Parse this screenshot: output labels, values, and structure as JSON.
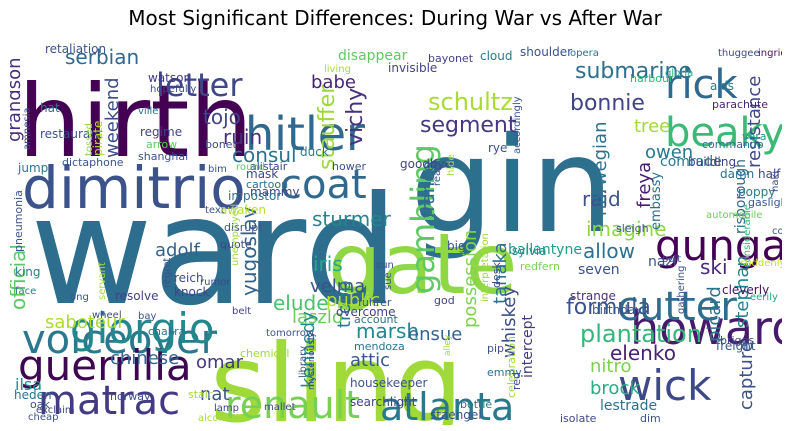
{
  "chart_data": {
    "type": "wordcloud",
    "title": "Most Significant Differences: During War vs After War",
    "words": [
      {
        "text": "ward",
        "color": "#2d6e8e"
      },
      {
        "text": "gin",
        "color": "#2d708e"
      },
      {
        "text": "hirth",
        "color": "#440154"
      },
      {
        "text": "sling",
        "color": "#a0da39"
      },
      {
        "text": "gate",
        "color": "#8fd744"
      },
      {
        "text": "dimitrio",
        "color": "#3b528b"
      },
      {
        "text": "hitler",
        "color": "#31688e"
      },
      {
        "text": "gunga",
        "color": "#440154"
      },
      {
        "text": "rick",
        "color": "#30688e"
      },
      {
        "text": "beaky",
        "color": "#3aba76"
      },
      {
        "text": "coat",
        "color": "#31688e"
      },
      {
        "text": "voiceover",
        "color": "#2a778e"
      },
      {
        "text": "guerrilla",
        "color": "#3e0751"
      },
      {
        "text": "howard",
        "color": "#481a6c"
      },
      {
        "text": "cutter",
        "color": "#2f6c8e"
      },
      {
        "text": "giorgio",
        "color": "#23888e"
      },
      {
        "text": "renault",
        "color": "#75d054"
      },
      {
        "text": "atlanta",
        "color": "#2a788e"
      },
      {
        "text": "wick",
        "color": "#3e4989"
      },
      {
        "text": "matrac",
        "color": "#443983"
      },
      {
        "text": "letter",
        "color": "#3f4788"
      },
      {
        "text": "gambling",
        "color": "#5ec962"
      },
      {
        "text": "submarine",
        "color": "#2e6f8e"
      },
      {
        "text": "bonnie",
        "color": "#404387"
      },
      {
        "text": "schultz",
        "color": "#a8db34"
      },
      {
        "text": "segment",
        "color": "#453781"
      },
      {
        "text": "plantation",
        "color": "#35b779"
      },
      {
        "text": "formula",
        "color": "#39558c"
      },
      {
        "text": "elenko",
        "color": "#482173"
      },
      {
        "text": "official",
        "color": "#5ac864"
      },
      {
        "text": "stauffer",
        "color": "#9dd93b"
      },
      {
        "text": "resistance",
        "color": "#3e4989"
      },
      {
        "text": "vichy",
        "color": "#46327e"
      },
      {
        "text": "ruin",
        "color": "#46307e"
      },
      {
        "text": "tojo",
        "color": "#404688"
      },
      {
        "text": "consul",
        "color": "#2c728e"
      },
      {
        "text": "grandson",
        "color": "#46307e"
      },
      {
        "text": "serbian",
        "color": "#31688e"
      },
      {
        "text": "weekend",
        "color": "#3d4d8a"
      },
      {
        "text": "babe",
        "color": "#482475"
      },
      {
        "text": "tree",
        "color": "#a0da39"
      },
      {
        "text": "owen",
        "color": "#2a788e"
      },
      {
        "text": "sturmer",
        "color": "#25858e"
      },
      {
        "text": "raid",
        "color": "#3b528b"
      },
      {
        "text": "norwegian",
        "color": "#2c728e"
      },
      {
        "text": "freya",
        "color": "#481d6f"
      },
      {
        "text": "france",
        "color": "#31688e"
      },
      {
        "text": "imagine",
        "color": "#90d743"
      },
      {
        "text": "allow",
        "color": "#2c728e"
      },
      {
        "text": "ski",
        "color": "#482878"
      },
      {
        "text": "adolf",
        "color": "#33638d"
      },
      {
        "text": "iris",
        "color": "#22a884"
      },
      {
        "text": "velma",
        "color": "#3b528b"
      },
      {
        "text": "elude",
        "color": "#4ac16d"
      },
      {
        "text": "yugoslav",
        "color": "#33638d"
      },
      {
        "text": "troop",
        "color": "#2a788e"
      },
      {
        "text": "laszlo",
        "color": "#6ccd5a"
      },
      {
        "text": "possession",
        "color": "#7fd34e"
      },
      {
        "text": "tanaka",
        "color": "#2c728e"
      },
      {
        "text": "stephan",
        "color": "#277f8e"
      },
      {
        "text": "picard",
        "color": "#2c728e"
      },
      {
        "text": "capture",
        "color": "#3b528b"
      },
      {
        "text": "kennedy",
        "color": "#23888e"
      },
      {
        "text": "marsh",
        "color": "#24868e"
      },
      {
        "text": "public",
        "color": "#b5de2b"
      },
      {
        "text": "ensue",
        "color": "#33638d"
      },
      {
        "text": "saboteur",
        "color": "#addc30"
      },
      {
        "text": "chinese",
        "color": "#31688e"
      },
      {
        "text": "omar",
        "color": "#443983"
      },
      {
        "text": "nat",
        "color": "#3b528b"
      },
      {
        "text": "attic",
        "color": "#38598c"
      },
      {
        "text": "whiskey",
        "color": "#3d4e8a"
      },
      {
        "text": "nitro",
        "color": "#7ad151"
      },
      {
        "text": "brock",
        "color": "#27ad81"
      },
      {
        "text": "lestrade",
        "color": "#2c728e"
      },
      {
        "text": "ilsa",
        "color": "#20928c"
      },
      {
        "text": "intercept",
        "color": "#443983"
      },
      {
        "text": "risborough",
        "color": "#31688e"
      },
      {
        "text": "embassy",
        "color": "#2c728e"
      },
      {
        "text": "king",
        "color": "#287d8e"
      },
      {
        "text": "comrade",
        "color": "#2a768e"
      },
      {
        "text": "sylvia",
        "color": "#24868e"
      },
      {
        "text": "ballantyne",
        "color": "#1e9b8a"
      },
      {
        "text": "redfern",
        "color": "#7ad151"
      },
      {
        "text": "seven",
        "color": "#3b528b"
      },
      {
        "text": "nazi",
        "color": "#3b528b"
      },
      {
        "text": "strange",
        "color": "#46337e"
      },
      {
        "text": "birthday",
        "color": "#39558c"
      },
      {
        "text": "cleverly",
        "color": "#471063"
      },
      {
        "text": "briggs",
        "color": "#3e4989"
      },
      {
        "text": "freight",
        "color": "#38598c"
      },
      {
        "text": "considerable",
        "color": "#2fb47c"
      },
      {
        "text": "suddenly",
        "color": "#c2df23"
      },
      {
        "text": "eerily",
        "color": "#22a884"
      },
      {
        "text": "couch",
        "color": "#3b528b"
      },
      {
        "text": "half",
        "color": "#404688"
      },
      {
        "text": "poppy",
        "color": "#2a788e"
      },
      {
        "text": "damn",
        "color": "#2c728e"
      },
      {
        "text": "building",
        "color": "#404387"
      },
      {
        "text": "gaslight",
        "color": "#38598c"
      },
      {
        "text": "automobile",
        "color": "#6ccd5a"
      },
      {
        "text": "goodbye",
        "color": "#414487"
      },
      {
        "text": "rye",
        "color": "#3b528b"
      },
      {
        "text": "commando",
        "color": "#2c728e"
      },
      {
        "text": "vera",
        "color": "#1f988b"
      },
      {
        "text": "parachute",
        "color": "#482475"
      },
      {
        "text": "axis",
        "color": "#2a788e"
      },
      {
        "text": "thuggee",
        "color": "#3e4989"
      },
      {
        "text": "ingrid",
        "color": "#471063"
      },
      {
        "text": "gloria",
        "color": "#22a884"
      },
      {
        "text": "opera",
        "color": "#2c728e"
      },
      {
        "text": "shoulder",
        "color": "#3b528b"
      },
      {
        "text": "bayonet",
        "color": "#414487"
      },
      {
        "text": "cloud",
        "color": "#2a788e"
      },
      {
        "text": "harbour",
        "color": "#35b779"
      },
      {
        "text": "disappear",
        "color": "#5ec962"
      },
      {
        "text": "invisible",
        "color": "#404387"
      },
      {
        "text": "retaliation",
        "color": "#3b528b"
      },
      {
        "text": "living",
        "color": "#a5db36"
      },
      {
        "text": "watson",
        "color": "#443983"
      },
      {
        "text": "hopefully",
        "color": "#3e4989"
      },
      {
        "text": "hat",
        "color": "#2a788e"
      },
      {
        "text": "restaurant",
        "color": "#3b528b"
      },
      {
        "text": "ville",
        "color": "#2c728e"
      },
      {
        "text": "bonet",
        "color": "#3e4989"
      },
      {
        "text": "regime",
        "color": "#404387"
      },
      {
        "text": "arrow",
        "color": "#5ec962"
      },
      {
        "text": "shanghai",
        "color": "#3b528b"
      },
      {
        "text": "duck",
        "color": "#2a788e"
      },
      {
        "text": "mask",
        "color": "#414487"
      },
      {
        "text": "hower",
        "color": "#3b528b"
      },
      {
        "text": "cartoon",
        "color": "#2c728e"
      },
      {
        "text": "alistair",
        "color": "#3e4989"
      },
      {
        "text": "round",
        "color": "#5ec962"
      },
      {
        "text": "bim",
        "color": "#3b528b"
      },
      {
        "text": "mammy",
        "color": "#414487"
      },
      {
        "text": "jump",
        "color": "#2c728e"
      },
      {
        "text": "dictaphone",
        "color": "#3b528b"
      },
      {
        "text": "amnesia",
        "color": "#404387"
      },
      {
        "text": "tossed",
        "color": "#8fd744"
      },
      {
        "text": "pirate",
        "color": "#b5de2b"
      },
      {
        "text": "text",
        "color": "#3b528b"
      },
      {
        "text": "awaken",
        "color": "#b5de2b"
      },
      {
        "text": "disrupt",
        "color": "#3b528b"
      },
      {
        "text": "quote",
        "color": "#414487"
      },
      {
        "text": "impostor",
        "color": "#2c728e"
      },
      {
        "text": "pneumonia",
        "color": "#3b528b"
      },
      {
        "text": "unemployed",
        "color": "#a0da39"
      },
      {
        "text": "reich",
        "color": "#3e4989"
      },
      {
        "text": "knock",
        "color": "#414487"
      },
      {
        "text": "chakra",
        "color": "#2c728e"
      },
      {
        "text": "servant",
        "color": "#a5db36"
      },
      {
        "text": "sun",
        "color": "#3b528b"
      },
      {
        "text": "sue",
        "color": "#3b528b"
      },
      {
        "text": "overcome",
        "color": "#404387"
      },
      {
        "text": "fuhrer",
        "color": "#3b528b"
      },
      {
        "text": "account",
        "color": "#2c728e"
      },
      {
        "text": "ong",
        "color": "#3b528b"
      },
      {
        "text": "wheel",
        "color": "#3e4989"
      },
      {
        "text": "resolve",
        "color": "#414487"
      },
      {
        "text": "face",
        "color": "#2a788e"
      },
      {
        "text": "bay",
        "color": "#3b528b"
      },
      {
        "text": "rumor",
        "color": "#3e4989"
      },
      {
        "text": "tomorrow",
        "color": "#3b528b"
      },
      {
        "text": "belt",
        "color": "#414487"
      },
      {
        "text": "chemical",
        "color": "#a0da39"
      },
      {
        "text": "library",
        "color": "#3b528b"
      },
      {
        "text": "mysteriously",
        "color": "#404387"
      },
      {
        "text": "mendoza",
        "color": "#2c728e"
      },
      {
        "text": "housekeeper",
        "color": "#3b528b"
      },
      {
        "text": "searchlight",
        "color": "#414487"
      },
      {
        "text": "staengel",
        "color": "#3b528b"
      },
      {
        "text": "bottle",
        "color": "#2c728e"
      },
      {
        "text": "mallet",
        "color": "#3e4989"
      },
      {
        "text": "lamp",
        "color": "#414487"
      },
      {
        "text": "stair",
        "color": "#a5db36"
      },
      {
        "text": "norway",
        "color": "#3b528b"
      },
      {
        "text": "oak",
        "color": "#3b528b"
      },
      {
        "text": "heden",
        "color": "#2c728e"
      },
      {
        "text": "exclaim",
        "color": "#3e4989"
      },
      {
        "text": "cheap",
        "color": "#3b528b"
      },
      {
        "text": "alcohol",
        "color": "#a5db36"
      },
      {
        "text": "regret",
        "color": "#3b528b"
      },
      {
        "text": "big",
        "color": "#3b528b"
      },
      {
        "text": "god",
        "color": "#414487"
      },
      {
        "text": "celebration",
        "color": "#a0da39"
      },
      {
        "text": "pip",
        "color": "#3b528b"
      },
      {
        "text": "emmy",
        "color": "#2c728e"
      },
      {
        "text": "red",
        "color": "#3b528b"
      },
      {
        "text": "alley",
        "color": "#a5db36"
      },
      {
        "text": "isolate",
        "color": "#3e4989"
      },
      {
        "text": "dim",
        "color": "#3b528b"
      },
      {
        "text": "desk",
        "color": "#3b528b"
      },
      {
        "text": "interpretation",
        "color": "#a0da39"
      },
      {
        "text": "reach",
        "color": "#3b528b"
      },
      {
        "text": "hide",
        "color": "#a0da39"
      },
      {
        "text": "accordingly",
        "color": "#3b528b"
      },
      {
        "text": "sleigh",
        "color": "#3b528b"
      },
      {
        "text": "haki",
        "color": "#3e4989"
      },
      {
        "text": "gathering",
        "color": "#3b528b"
      },
      {
        "text": "bolt",
        "color": "#414487"
      }
    ]
  }
}
